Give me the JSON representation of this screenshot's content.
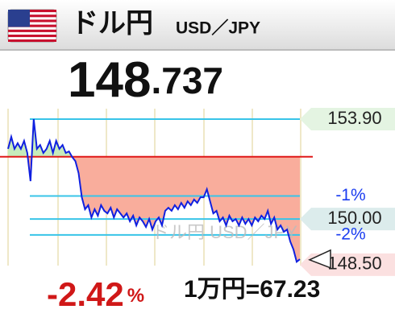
{
  "header": {
    "title": "ドル円",
    "subtitle": "USD／JPY"
  },
  "price": {
    "integer": "148",
    "decimal": ".737"
  },
  "chart_data": {
    "type": "line",
    "watermark": "ドル円 USD／JPY",
    "color": "#1020e0",
    "values": [
      152.74,
      153.21,
      152.74,
      152.96,
      152.74,
      153.05,
      152.58,
      151.48,
      153.9,
      152.74,
      152.89,
      152.58,
      152.74,
      153.05,
      152.58,
      153.05,
      152.74,
      152.89,
      152.58,
      152.64,
      152.42,
      152.26,
      151.79,
      150.85,
      150.38,
      150.54,
      150.06,
      150.38,
      150.13,
      150.54,
      150.32,
      150.22,
      150.44,
      150.06,
      150.38,
      150.22,
      150.06,
      150.22,
      149.91,
      150.13,
      149.75,
      150.06,
      149.91,
      149.69,
      150.0,
      149.59,
      149.91,
      150.06,
      149.75,
      150.32,
      150.44,
      150.32,
      150.54,
      150.38,
      150.63,
      150.44,
      150.69,
      150.54,
      150.76,
      150.63,
      150.85,
      150.85,
      151.16,
      150.69,
      150.22,
      150.32,
      149.91,
      150.06,
      149.75,
      150.13,
      149.91,
      150.0,
      149.75,
      150.06,
      149.81,
      150.0,
      149.75,
      150.06,
      149.91,
      150.13,
      150.0,
      150.32,
      149.81,
      150.06,
      149.59,
      149.75,
      149.5,
      149.59,
      149.12,
      148.81,
      148.33,
      148.43
    ],
    "ylim": [
      148.18,
      154.31
    ],
    "base": 152.43,
    "yticks": [
      {
        "value": 153.9,
        "label": "153.90"
      },
      {
        "value": 150.0,
        "label": "150.00"
      }
    ],
    "percent_lines": [
      {
        "value": 150.9,
        "label": "-1%"
      },
      {
        "value": 149.38,
        "label": "-2%"
      }
    ],
    "low_label": {
      "value": 148.5,
      "label": "148.50"
    }
  },
  "footer": {
    "change": "-2.42",
    "change_unit": "%",
    "conversion": "1万円=67.23"
  }
}
